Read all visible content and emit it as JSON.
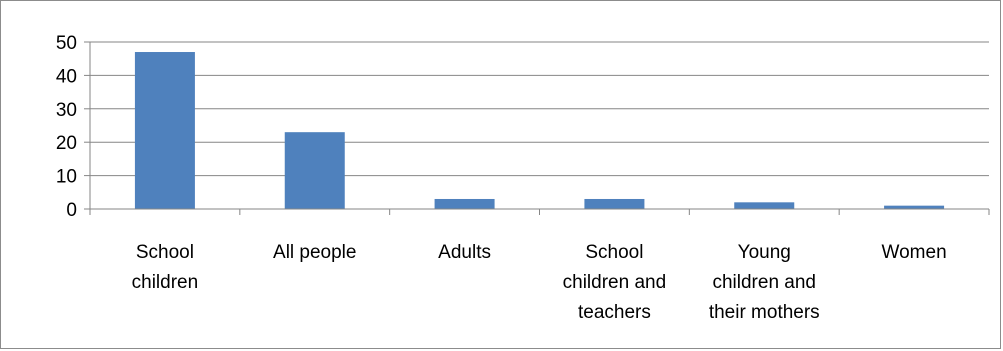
{
  "chart_data": {
    "type": "bar",
    "title": "",
    "xlabel": "",
    "ylabel": "",
    "categories": [
      [
        "School",
        "children"
      ],
      [
        "All people"
      ],
      [
        "Adults"
      ],
      [
        "School",
        "children and",
        "teachers"
      ],
      [
        "Young",
        "children and",
        "their mothers"
      ],
      [
        "Women"
      ]
    ],
    "values": [
      47,
      23,
      3,
      3,
      2,
      1
    ],
    "ylim": [
      0,
      50
    ],
    "yticks": [
      0,
      10,
      20,
      30,
      40,
      50
    ],
    "grid": true,
    "legend": "none",
    "bar_color": "#4F81BD",
    "gridline_color": "#868686"
  }
}
